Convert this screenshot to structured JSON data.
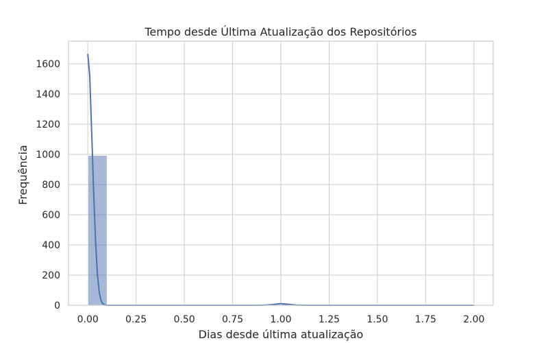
{
  "chart_data": {
    "type": "bar",
    "title": "Tempo desde Última Atualização dos Repositórios",
    "xlabel": "Dias desde última atualização",
    "ylabel": "Frequência",
    "xlim": [
      -0.1,
      2.1
    ],
    "ylim": [
      0,
      1750
    ],
    "xticks": [
      0.0,
      0.25,
      0.5,
      0.75,
      1.0,
      1.25,
      1.5,
      1.75,
      2.0
    ],
    "xtick_labels": [
      "0.00",
      "0.25",
      "0.50",
      "0.75",
      "1.00",
      "1.25",
      "1.50",
      "1.75",
      "2.00"
    ],
    "yticks": [
      0,
      200,
      400,
      600,
      800,
      1000,
      1200,
      1400,
      1600
    ],
    "ytick_labels": [
      "0",
      "200",
      "400",
      "600",
      "800",
      "1000",
      "1200",
      "1400",
      "1600"
    ],
    "grid": true,
    "histogram": {
      "bins": [
        {
          "x0": 0.0,
          "x1": 0.1,
          "count": 993
        },
        {
          "x0": 0.1,
          "x1": 0.2,
          "count": 0
        },
        {
          "x0": 0.2,
          "x1": 0.3,
          "count": 0
        },
        {
          "x0": 0.3,
          "x1": 0.4,
          "count": 0
        },
        {
          "x0": 0.4,
          "x1": 0.5,
          "count": 0
        },
        {
          "x0": 0.5,
          "x1": 0.6,
          "count": 0
        },
        {
          "x0": 0.6,
          "x1": 0.7,
          "count": 0
        },
        {
          "x0": 0.7,
          "x1": 0.8,
          "count": 0
        },
        {
          "x0": 0.8,
          "x1": 0.9,
          "count": 0
        },
        {
          "x0": 0.9,
          "x1": 1.0,
          "count": 0
        },
        {
          "x0": 1.0,
          "x1": 1.1,
          "count": 6
        },
        {
          "x0": 1.1,
          "x1": 1.2,
          "count": 0
        },
        {
          "x0": 1.2,
          "x1": 1.3,
          "count": 0
        },
        {
          "x0": 1.3,
          "x1": 1.4,
          "count": 0
        },
        {
          "x0": 1.4,
          "x1": 1.5,
          "count": 0
        },
        {
          "x0": 1.5,
          "x1": 1.6,
          "count": 0
        },
        {
          "x0": 1.6,
          "x1": 1.7,
          "count": 0
        },
        {
          "x0": 1.7,
          "x1": 1.8,
          "count": 0
        },
        {
          "x0": 1.8,
          "x1": 1.9,
          "count": 0
        },
        {
          "x0": 1.9,
          "x1": 2.0,
          "count": 1
        }
      ]
    },
    "kde": {
      "x": [
        0.0,
        0.01,
        0.02,
        0.03,
        0.04,
        0.05,
        0.06,
        0.07,
        0.08,
        0.09,
        0.1,
        0.15,
        0.3,
        0.5,
        0.7,
        0.85,
        0.92,
        0.96,
        1.0,
        1.04,
        1.08,
        1.15,
        1.3,
        1.6,
        1.9,
        2.0
      ],
      "y": [
        1665,
        1520,
        1150,
        760,
        430,
        200,
        80,
        25,
        8,
        2,
        0,
        0,
        0,
        0,
        0,
        0,
        1,
        5,
        11,
        6,
        1,
        0,
        0,
        0,
        0,
        0
      ],
      "color": "#4c72b0"
    },
    "bar_color": "#4c72b0"
  }
}
